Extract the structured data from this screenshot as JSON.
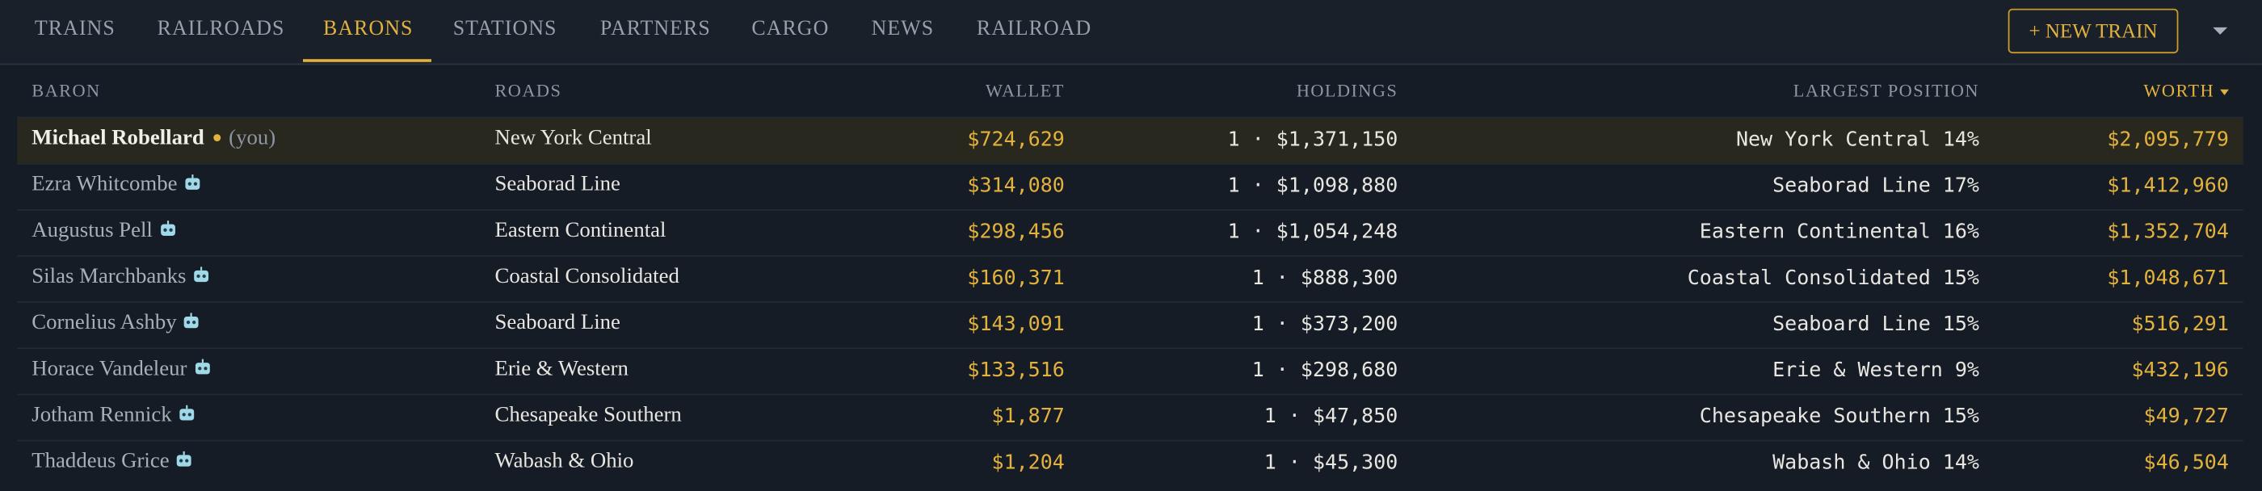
{
  "nav": {
    "tabs": [
      "TRAINS",
      "RAILROADS",
      "BARONS",
      "STATIONS",
      "PARTNERS",
      "CARGO",
      "NEWS",
      "RAILROAD"
    ],
    "button": "+ NEW TRAIN"
  },
  "table": {
    "headers": [
      "BARON",
      "ROADS",
      "WALLET",
      "HOLDINGS",
      "LARGEST POSITION",
      "WORTH"
    ],
    "you_label": "(you)",
    "rows": [
      [
        "Michael Robellard",
        "New York Central",
        "$724,629",
        "1 · $1,371,150",
        "New York Central 14%",
        "$2,095,779"
      ],
      [
        "Ezra Whitcombe",
        "Seaborad Line",
        "$314,080",
        "1 · $1,098,880",
        "Seaborad Line 17%",
        "$1,412,960"
      ],
      [
        "Augustus Pell",
        "Eastern Continental",
        "$298,456",
        "1 · $1,054,248",
        "Eastern Continental 16%",
        "$1,352,704"
      ],
      [
        "Silas Marchbanks",
        "Coastal Consolidated",
        "$160,371",
        "1 · $888,300",
        "Coastal Consolidated 15%",
        "$1,048,671"
      ],
      [
        "Cornelius Ashby",
        "Seaboard Line",
        "$143,091",
        "1 · $373,200",
        "Seaboard Line 15%",
        "$516,291"
      ],
      [
        "Horace Vandeleur",
        "Erie & Western",
        "$133,516",
        "1 · $298,680",
        "Erie & Western 9%",
        "$432,196"
      ],
      [
        "Jotham Rennick",
        "Chesapeake Southern",
        "$1,877",
        "1 · $47,850",
        "Chesapeake Southern 15%",
        "$49,727"
      ],
      [
        "Thaddeus Grice",
        "Wabash & Ohio",
        "$1,204",
        "1 · $45,300",
        "Wabash & Ohio 14%",
        "$46,504"
      ]
    ]
  }
}
